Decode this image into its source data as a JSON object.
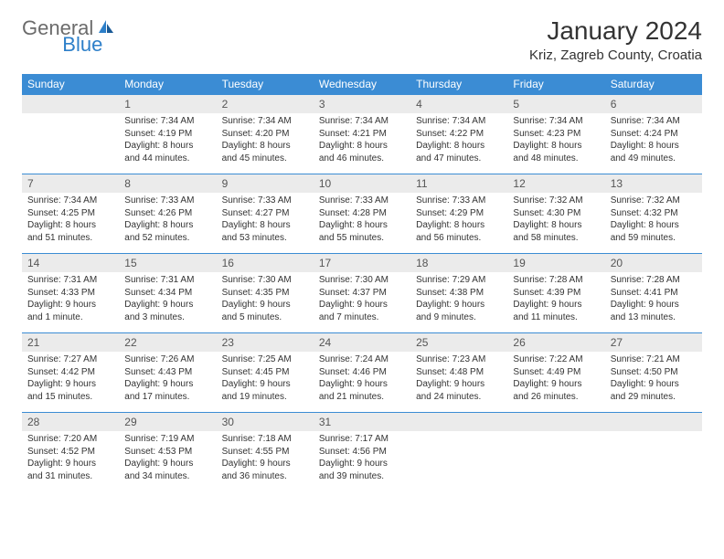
{
  "logo": {
    "general": "General",
    "blue": "Blue"
  },
  "title": "January 2024",
  "location": "Kriz, Zagreb County, Croatia",
  "colors": {
    "header_bg": "#3b8cd4",
    "daynum_bg": "#ebebeb",
    "row_border": "#3b8cd4",
    "logo_gray": "#6b6b6b",
    "logo_blue": "#2d7fc9",
    "text": "#333333"
  },
  "day_names": [
    "Sunday",
    "Monday",
    "Tuesday",
    "Wednesday",
    "Thursday",
    "Friday",
    "Saturday"
  ],
  "weeks": [
    {
      "nums": [
        "",
        "1",
        "2",
        "3",
        "4",
        "5",
        "6"
      ],
      "details": [
        "",
        "Sunrise: 7:34 AM\nSunset: 4:19 PM\nDaylight: 8 hours and 44 minutes.",
        "Sunrise: 7:34 AM\nSunset: 4:20 PM\nDaylight: 8 hours and 45 minutes.",
        "Sunrise: 7:34 AM\nSunset: 4:21 PM\nDaylight: 8 hours and 46 minutes.",
        "Sunrise: 7:34 AM\nSunset: 4:22 PM\nDaylight: 8 hours and 47 minutes.",
        "Sunrise: 7:34 AM\nSunset: 4:23 PM\nDaylight: 8 hours and 48 minutes.",
        "Sunrise: 7:34 AM\nSunset: 4:24 PM\nDaylight: 8 hours and 49 minutes."
      ]
    },
    {
      "nums": [
        "7",
        "8",
        "9",
        "10",
        "11",
        "12",
        "13"
      ],
      "details": [
        "Sunrise: 7:34 AM\nSunset: 4:25 PM\nDaylight: 8 hours and 51 minutes.",
        "Sunrise: 7:33 AM\nSunset: 4:26 PM\nDaylight: 8 hours and 52 minutes.",
        "Sunrise: 7:33 AM\nSunset: 4:27 PM\nDaylight: 8 hours and 53 minutes.",
        "Sunrise: 7:33 AM\nSunset: 4:28 PM\nDaylight: 8 hours and 55 minutes.",
        "Sunrise: 7:33 AM\nSunset: 4:29 PM\nDaylight: 8 hours and 56 minutes.",
        "Sunrise: 7:32 AM\nSunset: 4:30 PM\nDaylight: 8 hours and 58 minutes.",
        "Sunrise: 7:32 AM\nSunset: 4:32 PM\nDaylight: 8 hours and 59 minutes."
      ]
    },
    {
      "nums": [
        "14",
        "15",
        "16",
        "17",
        "18",
        "19",
        "20"
      ],
      "details": [
        "Sunrise: 7:31 AM\nSunset: 4:33 PM\nDaylight: 9 hours and 1 minute.",
        "Sunrise: 7:31 AM\nSunset: 4:34 PM\nDaylight: 9 hours and 3 minutes.",
        "Sunrise: 7:30 AM\nSunset: 4:35 PM\nDaylight: 9 hours and 5 minutes.",
        "Sunrise: 7:30 AM\nSunset: 4:37 PM\nDaylight: 9 hours and 7 minutes.",
        "Sunrise: 7:29 AM\nSunset: 4:38 PM\nDaylight: 9 hours and 9 minutes.",
        "Sunrise: 7:28 AM\nSunset: 4:39 PM\nDaylight: 9 hours and 11 minutes.",
        "Sunrise: 7:28 AM\nSunset: 4:41 PM\nDaylight: 9 hours and 13 minutes."
      ]
    },
    {
      "nums": [
        "21",
        "22",
        "23",
        "24",
        "25",
        "26",
        "27"
      ],
      "details": [
        "Sunrise: 7:27 AM\nSunset: 4:42 PM\nDaylight: 9 hours and 15 minutes.",
        "Sunrise: 7:26 AM\nSunset: 4:43 PM\nDaylight: 9 hours and 17 minutes.",
        "Sunrise: 7:25 AM\nSunset: 4:45 PM\nDaylight: 9 hours and 19 minutes.",
        "Sunrise: 7:24 AM\nSunset: 4:46 PM\nDaylight: 9 hours and 21 minutes.",
        "Sunrise: 7:23 AM\nSunset: 4:48 PM\nDaylight: 9 hours and 24 minutes.",
        "Sunrise: 7:22 AM\nSunset: 4:49 PM\nDaylight: 9 hours and 26 minutes.",
        "Sunrise: 7:21 AM\nSunset: 4:50 PM\nDaylight: 9 hours and 29 minutes."
      ]
    },
    {
      "nums": [
        "28",
        "29",
        "30",
        "31",
        "",
        "",
        ""
      ],
      "details": [
        "Sunrise: 7:20 AM\nSunset: 4:52 PM\nDaylight: 9 hours and 31 minutes.",
        "Sunrise: 7:19 AM\nSunset: 4:53 PM\nDaylight: 9 hours and 34 minutes.",
        "Sunrise: 7:18 AM\nSunset: 4:55 PM\nDaylight: 9 hours and 36 minutes.",
        "Sunrise: 7:17 AM\nSunset: 4:56 PM\nDaylight: 9 hours and 39 minutes.",
        "",
        "",
        ""
      ]
    }
  ]
}
